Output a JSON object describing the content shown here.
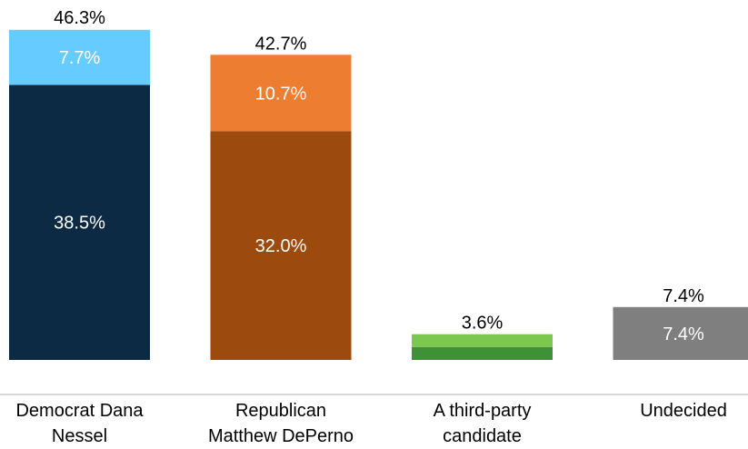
{
  "chart_data": {
    "type": "bar",
    "stacked": true,
    "categories": [
      {
        "lines": [
          "Democrat Dana",
          "Nessel"
        ]
      },
      {
        "lines": [
          "Republican",
          "Matthew DePerno"
        ]
      },
      {
        "lines": [
          "A third-party",
          "candidate"
        ]
      },
      {
        "lines": [
          "Undecided"
        ]
      }
    ],
    "bars": [
      {
        "total": 46.3,
        "total_label": "46.3%",
        "segments": [
          {
            "value": 38.5,
            "label": "38.5%",
            "color": "#0d2a45",
            "label_color": "#ffffff"
          },
          {
            "value": 7.7,
            "label": "7.7%",
            "color": "#66ccff",
            "label_color": "#ffffff"
          }
        ]
      },
      {
        "total": 42.7,
        "total_label": "42.7%",
        "segments": [
          {
            "value": 32.0,
            "label": "32.0%",
            "color": "#9c4a0e",
            "label_color": "#ffffff"
          },
          {
            "value": 10.7,
            "label": "10.7%",
            "color": "#ed7d31",
            "label_color": "#ffffff"
          }
        ]
      },
      {
        "total": 3.6,
        "total_label": "3.6%",
        "segments": [
          {
            "value": 1.8,
            "label": "",
            "color": "#3f9138",
            "label_color": "#ffffff"
          },
          {
            "value": 1.8,
            "label": "",
            "color": "#7cc84e",
            "label_color": "#ffffff"
          }
        ]
      },
      {
        "total": 7.4,
        "total_label": "7.4%",
        "segments": [
          {
            "value": 7.4,
            "label": "7.4%",
            "color": "#7f7f7f",
            "label_color": "#ffffff"
          }
        ]
      }
    ],
    "ylim": [
      0,
      46.3
    ],
    "grid": false,
    "legend": "none",
    "baseline_color": "#d9d9d9",
    "total_label_color": "#000000"
  }
}
